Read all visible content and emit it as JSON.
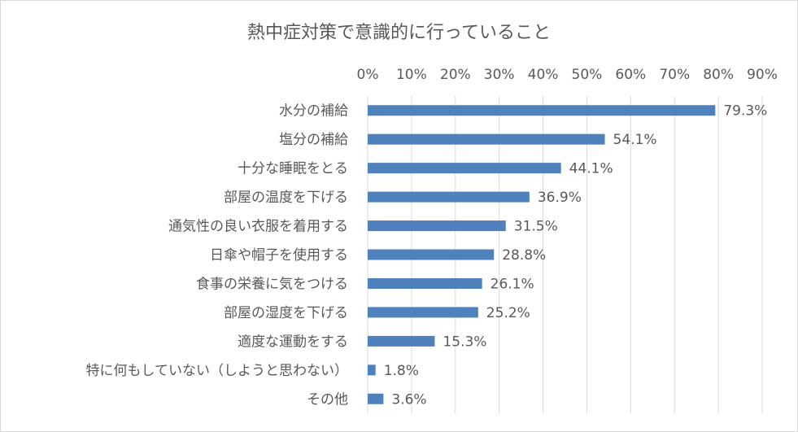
{
  "chart_data": {
    "type": "bar",
    "orientation": "horizontal",
    "title": "熱中症対策で意識的に行っていること",
    "xlabel": "",
    "ylabel": "",
    "xlim": [
      0,
      90
    ],
    "ticks": [
      0,
      10,
      20,
      30,
      40,
      50,
      60,
      70,
      80,
      90
    ],
    "tick_labels": [
      "0%",
      "10%",
      "20%",
      "30%",
      "40%",
      "50%",
      "60%",
      "70%",
      "80%",
      "90%"
    ],
    "x_axis_position": "top",
    "grid": true,
    "legend": "none",
    "bar_color": "#4f81bd",
    "categories": [
      "水分の補給",
      "塩分の補給",
      "十分な睡眠をとる",
      "部屋の温度を下げる",
      "通気性の良い衣服を着用する",
      "日傘や帽子を使用する",
      "食事の栄養に気をつける",
      "部屋の湿度を下げる",
      "適度な運動をする",
      "特に何もしていない（しようと思わない）",
      "その他"
    ],
    "values": [
      79.3,
      54.1,
      44.1,
      36.9,
      31.5,
      28.8,
      26.1,
      25.2,
      15.3,
      1.8,
      3.6
    ],
    "data_labels": [
      "79.3%",
      "54.1%",
      "44.1%",
      "36.9%",
      "31.5%",
      "28.8%",
      "26.1%",
      "25.2%",
      "15.3%",
      "1.8%",
      "3.6%"
    ]
  }
}
